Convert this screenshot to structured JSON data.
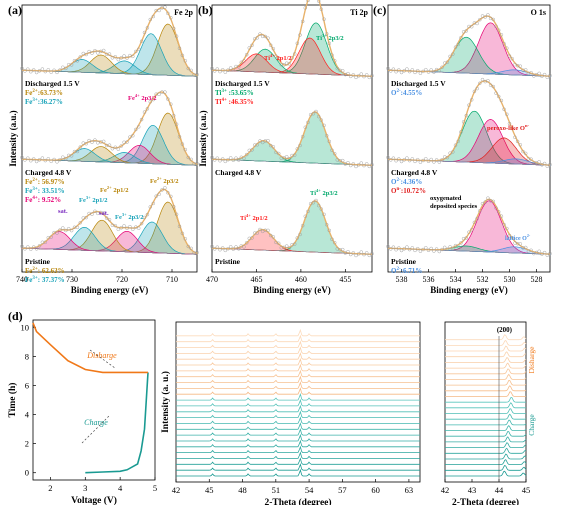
{
  "colors": {
    "raw": "#9a9a9a",
    "fit": "#e8b26a",
    "bg": "#8a8aa0",
    "fe2": "#b8860b",
    "fe3": "#17a2b8",
    "fe4": "#e60073",
    "ti3": "#ff2020",
    "ti4": "#00a86b",
    "o2": "#4a90e2",
    "oper": "#e11d1d",
    "orange": "#f07818",
    "teal": "#1a9a92"
  },
  "chart_data": [
    {
      "panel": "(a)",
      "type": "line",
      "element_label": "Fe 2p",
      "xlabel": "Binding energy (eV)",
      "ylabel": "Intensity (a.u.)",
      "xlim": [
        740,
        705
      ],
      "xticks": [
        740,
        730,
        720,
        710
      ],
      "reversed_x": true,
      "states": [
        {
          "name": "Discharged 1.5 V",
          "lines": [
            {
              "t": "Fe",
              "sup": "2+",
              "v": ":63.73%",
              "c": "fe2"
            },
            {
              "t": "Fe",
              "sup": "3+",
              "v": ":36.27%",
              "c": "fe3"
            }
          ],
          "peaks": [
            {
              "c": 710.8,
              "h": 1.0,
              "col": "fe2"
            },
            {
              "c": 714.2,
              "h": 0.8,
              "col": "fe3"
            },
            {
              "c": 719.5,
              "h": 0.25,
              "col": "fe3"
            },
            {
              "c": 724.2,
              "h": 0.35,
              "col": "fe2"
            },
            {
              "c": 728.0,
              "h": 0.25,
              "col": "fe3"
            }
          ]
        },
        {
          "name": "Charged 4.8 V",
          "lines": [
            {
              "t": "Fe",
              "sup": "2+",
              "v": ": 56.97%",
              "c": "fe2"
            },
            {
              "t": "Fe",
              "sup": "3+",
              "v": ": 33.51%",
              "c": "fe3"
            },
            {
              "t": "Fe",
              "sup": "4+",
              "v": ": 9.52%",
              "c": "fe4"
            }
          ],
          "peaks": [
            {
              "c": 710.8,
              "h": 1.0,
              "col": "fe2"
            },
            {
              "c": 713.8,
              "h": 0.75,
              "col": "fe3"
            },
            {
              "c": 716.5,
              "h": 0.35,
              "col": "fe4"
            },
            {
              "c": 719.5,
              "h": 0.2,
              "col": "fe3"
            },
            {
              "c": 724.2,
              "h": 0.3,
              "col": "fe2"
            },
            {
              "c": 727.5,
              "h": 0.25,
              "col": "fe3"
            }
          ],
          "annotations": [
            "Fe4+ 2p3/2"
          ]
        },
        {
          "name": "Pristine",
          "lines": [
            {
              "t": "Fe",
              "sup": "2+",
              "v": ": 62.63%",
              "c": "fe2"
            },
            {
              "t": "Fe",
              "sup": "3+",
              "v": ": 37.37%",
              "c": "fe3"
            }
          ],
          "peaks": [
            {
              "c": 710.8,
              "h": 1.0,
              "col": "fe2"
            },
            {
              "c": 714.0,
              "h": 0.6,
              "col": "fe3"
            },
            {
              "c": 719.0,
              "h": 0.4,
              "col": "fe4"
            },
            {
              "c": 724.0,
              "h": 0.6,
              "col": "fe2"
            },
            {
              "c": 727.5,
              "h": 0.45,
              "col": "fe3"
            },
            {
              "c": 732.5,
              "h": 0.35,
              "col": "fe4"
            }
          ],
          "annotations": [
            "Fe2+ 2p1/2",
            "Fe3+ 2p1/2",
            "Fe2+ 2p3/2",
            "Fe3+ 2p3/2",
            "sat.",
            "sat."
          ]
        }
      ]
    },
    {
      "panel": "(b)",
      "type": "line",
      "element_label": "Ti 2p",
      "xlabel": "Binding energy (eV)",
      "ylabel": "Intensity (a.u.)",
      "xlim": [
        470,
        452
      ],
      "xticks": [
        470,
        465,
        460,
        455
      ],
      "reversed_x": true,
      "states": [
        {
          "name": "Discharged 1.5 V",
          "lines": [
            {
              "t": "Ti",
              "sup": "3+",
              "v": " :53.65%",
              "c": "ti4"
            },
            {
              "t": "Ti",
              "sup": "4+",
              "v": " :46.35%",
              "c": "ti3"
            }
          ],
          "peaks": [
            {
              "c": 458.3,
              "h": 1.0,
              "col": "ti4"
            },
            {
              "c": 459.0,
              "h": 0.7,
              "col": "ti3"
            },
            {
              "c": 464.0,
              "h": 0.45,
              "col": "ti4"
            },
            {
              "c": 465.0,
              "h": 0.35,
              "col": "ti3"
            }
          ],
          "annotations": [
            "Ti4+ 2p1/2",
            "Ti3+ 2p3/2"
          ]
        },
        {
          "name": "Charged 4.8 V",
          "lines": [],
          "peaks": [
            {
              "c": 458.4,
              "h": 1.0,
              "col": "ti4"
            },
            {
              "c": 464.2,
              "h": 0.4,
              "col": "ti4"
            }
          ]
        },
        {
          "name": "Pristine",
          "lines": [],
          "peaks": [
            {
              "c": 458.4,
              "h": 1.0,
              "col": "ti4"
            },
            {
              "c": 464.3,
              "h": 0.4,
              "col": "ti3"
            }
          ],
          "annotations": [
            "Ti4+ 2p1/2",
            "Ti4+ 2p3/2"
          ]
        }
      ]
    },
    {
      "panel": "(c)",
      "type": "line",
      "element_label": "O 1s",
      "xlabel": "Binding energy (eV)",
      "ylabel": "",
      "xlim": [
        539,
        527
      ],
      "xticks": [
        538,
        536,
        534,
        532,
        530,
        528
      ],
      "reversed_x": true,
      "states": [
        {
          "name": "Discharged 1.5 V",
          "lines": [
            {
              "t": "O",
              "sup": "2-",
              "v": ":4.55%",
              "c": "o2"
            }
          ],
          "peaks": [
            {
              "c": 531.4,
              "h": 1.0,
              "col": "fe4"
            },
            {
              "c": 533.2,
              "h": 0.7,
              "col": "ti4"
            },
            {
              "c": 529.6,
              "h": 0.1,
              "col": "o2"
            }
          ]
        },
        {
          "name": "Charged 4.8 V",
          "lines": [
            {
              "t": "O",
              "sup": "2-",
              "v": ":4.36%",
              "c": "o2"
            },
            {
              "t": "O",
              "sup": "n-",
              "v": ":10.72%",
              "c": "oper"
            }
          ],
          "peaks": [
            {
              "c": 532.6,
              "h": 1.0,
              "col": "ti4"
            },
            {
              "c": 531.4,
              "h": 0.85,
              "col": "fe4"
            },
            {
              "c": 530.4,
              "h": 0.5,
              "col": "oper"
            },
            {
              "c": 529.5,
              "h": 0.1,
              "col": "o2"
            }
          ],
          "annotations": [
            "peroxo-like On-"
          ]
        },
        {
          "name": "Pristine",
          "lines": [
            {
              "t": "O",
              "sup": "2-",
              "v": ":6.71%",
              "c": "o2"
            }
          ],
          "peaks": [
            {
              "c": 531.5,
              "h": 1.0,
              "col": "fe4"
            },
            {
              "c": 533.2,
              "h": 0.1,
              "col": "ti4"
            },
            {
              "c": 529.6,
              "h": 0.12,
              "col": "o2"
            }
          ],
          "annotations": [
            "oxygenated deposited species",
            "lattice O2-"
          ]
        }
      ]
    },
    {
      "panel": "(d)",
      "type": "line",
      "xlabel": "Voltage (V)",
      "ylabel": "Time (h)",
      "xlim": [
        1.5,
        5.0
      ],
      "ylim": [
        -0.5,
        10.5
      ],
      "xticks": [
        2,
        3,
        4,
        5
      ],
      "yticks": [
        0,
        2,
        4,
        6,
        8,
        10
      ],
      "series": [
        {
          "name": "Charge",
          "x": [
            3.0,
            3.5,
            4.0,
            4.2,
            4.5,
            4.6,
            4.7,
            4.75,
            4.8
          ],
          "y": [
            0.0,
            0.05,
            0.1,
            0.2,
            0.6,
            1.5,
            3.0,
            5.0,
            6.9
          ]
        },
        {
          "name": "Disharge",
          "x": [
            4.8,
            3.5,
            3.0,
            2.5,
            2.0,
            1.6,
            1.5
          ],
          "y": [
            6.9,
            6.9,
            7.1,
            7.7,
            8.8,
            9.7,
            10.3
          ]
        }
      ]
    },
    {
      "panel": "(d-xrd)",
      "type": "line",
      "xlabel": "2-Theta (degree)",
      "ylabel": "Intensity (a. u.)",
      "xlim": [
        42,
        64
      ],
      "xticks": [
        42,
        45,
        48,
        51,
        54,
        57,
        60,
        63
      ],
      "peaks_2theta": [
        45.3,
        48.5,
        51.0,
        53.2,
        54.0
      ],
      "n_charge": 14,
      "n_discharge": 11
    },
    {
      "panel": "(d-zoom)",
      "type": "line",
      "xlabel": "2-Theta (degree)",
      "ylabel": "",
      "xlim": [
        42,
        45
      ],
      "xticks": [
        42,
        43,
        44,
        45
      ],
      "peak_label": "(200)",
      "peak_2theta": 44.2,
      "arrow_labels": [
        "Disharge",
        "Charge"
      ]
    }
  ],
  "labels": {
    "pa": "(a)",
    "pb": "(b)",
    "pc": "(c)",
    "pd": "(d)",
    "charge": "Charge",
    "discharge": "Disharge",
    "sat1": "sat.",
    "sat2": "sat."
  }
}
